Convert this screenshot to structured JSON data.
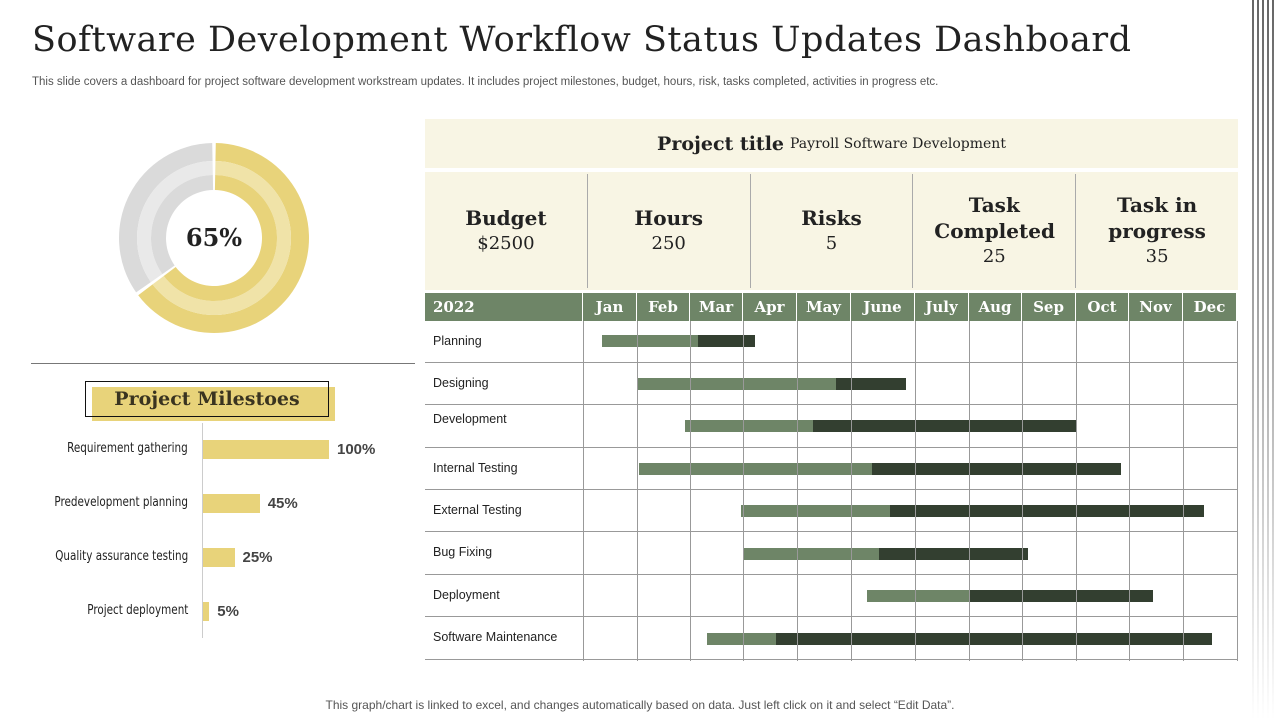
{
  "header": {
    "title": "Software Development Workflow Status Updates Dashboard",
    "subtitle": "This slide covers a dashboard for project software development workstream updates. It includes project milestones, budget, hours, risk, tasks completed, activities in progress etc."
  },
  "donut": {
    "value": 65,
    "label": "65%",
    "colors": {
      "fill": "#E8D37A",
      "fill_light": "#F0E3A8",
      "rest": "#DADADA",
      "rest_light": "#E9E9E9"
    }
  },
  "project": {
    "title_key": "Project title",
    "title_value": "Payroll Software Development"
  },
  "kpis": [
    {
      "label": "Budget",
      "value": "$2500"
    },
    {
      "label": "Hours",
      "value": "250"
    },
    {
      "label": "Risks",
      "value": "5"
    },
    {
      "label": "Task Completed",
      "value": "25"
    },
    {
      "label": "Task in progress",
      "value": "35"
    }
  ],
  "gantt": {
    "year": "2022",
    "months": [
      "Jan",
      "Feb",
      "Mar",
      "Apr",
      "May",
      "June",
      "July",
      "Aug",
      "Sep",
      "Oct",
      "Nov",
      "Dec"
    ],
    "colors": {
      "header": "#6E8567",
      "done": "#6E8567",
      "remaining": "#333F30"
    },
    "tasks": [
      {
        "name": "Planning",
        "start": 0.35,
        "mid": 2.15,
        "end": 3.22
      },
      {
        "name": "Designing",
        "start": 1.0,
        "mid": 4.72,
        "end": 5.86
      },
      {
        "name": "Development",
        "start": 1.9,
        "mid": 4.3,
        "end": 9.0
      },
      {
        "name": "Internal Testing",
        "start": 1.04,
        "mid": 5.33,
        "end": 9.85
      },
      {
        "name": "External Testing",
        "start": 2.96,
        "mid": 5.61,
        "end": 11.39
      },
      {
        "name": "Bug Fixing",
        "start": 3.0,
        "mid": 5.44,
        "end": 8.11
      },
      {
        "name": "Deployment",
        "start": 5.25,
        "mid": 7.02,
        "end": 10.44
      },
      {
        "name": "Software Maintenance",
        "start": 2.32,
        "mid": 3.61,
        "end": 11.54
      }
    ]
  },
  "milestones": {
    "title": "Project Milestoes",
    "items": [
      {
        "name": "Requirement gathering",
        "value": 100,
        "label": "100%"
      },
      {
        "name": "Predevelopment planning",
        "value": 45,
        "label": "45%"
      },
      {
        "name": "Quality assurance testing",
        "value": 25,
        "label": "25%"
      },
      {
        "name": "Project deployment",
        "value": 5,
        "label": "5%"
      }
    ]
  },
  "footer": "This graph/chart is linked to excel, and changes automatically based on data. Just left click on it and select “Edit Data”."
}
